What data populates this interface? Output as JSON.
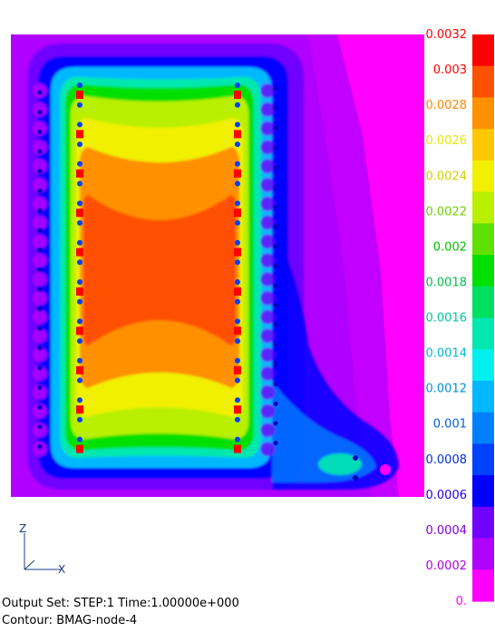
{
  "chart_data": {
    "type": "heatmap",
    "title": "",
    "colorbar": {
      "ticks": [
        {
          "label": "0.0032",
          "value": 0.0032,
          "color": "#ff0000"
        },
        {
          "label": "0.003",
          "value": 0.003,
          "color": "#ff0000"
        },
        {
          "label": "0.0028",
          "value": 0.0028,
          "color": "#ff8800"
        },
        {
          "label": "0.0026",
          "value": 0.0026,
          "color": "#e8e800"
        },
        {
          "label": "0.0024",
          "value": 0.0024,
          "color": "#d0d000"
        },
        {
          "label": "0.0022",
          "value": 0.0022,
          "color": "#70d000"
        },
        {
          "label": "0.002",
          "value": 0.002,
          "color": "#00c000"
        },
        {
          "label": "0.0018",
          "value": 0.0018,
          "color": "#00c050"
        },
        {
          "label": "0.0016",
          "value": 0.0016,
          "color": "#00c8a0"
        },
        {
          "label": "0.0014",
          "value": 0.0014,
          "color": "#00b8d8"
        },
        {
          "label": "0.0012",
          "value": 0.0012,
          "color": "#0090e0"
        },
        {
          "label": "0.001",
          "value": 0.001,
          "color": "#0060e0"
        },
        {
          "label": "0.0008",
          "value": 0.0008,
          "color": "#0030e0"
        },
        {
          "label": "0.0006",
          "value": 0.0006,
          "color": "#2000e0"
        },
        {
          "label": "0.0004",
          "value": 0.0004,
          "color": "#8000e0"
        },
        {
          "label": "0.0002",
          "value": 0.0002,
          "color": "#b000e0"
        },
        {
          "label": "0.",
          "value": 0.0,
          "color": "#ff00ff"
        }
      ],
      "band_colors": [
        "#ff0000",
        "#ff5000",
        "#ff9000",
        "#ffc800",
        "#f0f000",
        "#b8f000",
        "#60e000",
        "#00e000",
        "#00e060",
        "#00e8b0",
        "#00f0f0",
        "#00b8ff",
        "#0080ff",
        "#0040ff",
        "#0000ff",
        "#7000ff",
        "#b000ff",
        "#ff00ff"
      ]
    },
    "field_regions": [
      {
        "value": 0.0006,
        "color": "#7000ff"
      },
      {
        "value": 0.0009,
        "color": "#0000ff"
      },
      {
        "value": 0.0013,
        "color": "#00b8ff"
      },
      {
        "value": 0.0017,
        "color": "#00e8b0"
      },
      {
        "value": 0.0019,
        "color": "#00e000"
      },
      {
        "value": 0.0023,
        "color": "#b8f000"
      },
      {
        "value": 0.0025,
        "color": "#f0f000"
      },
      {
        "value": 0.0027,
        "color": "#ff9000"
      },
      {
        "value": 0.0029,
        "color": "#ff5000"
      }
    ],
    "triad": {
      "y_label": "Z",
      "x_label": "X",
      "y_color": "#1a3a8a",
      "x_color": "#1a3a8a"
    }
  },
  "info": {
    "output_set": "Output Set: STEP:1 Time:1.00000e+000",
    "contour": "Contour: BMAG-node-4"
  }
}
